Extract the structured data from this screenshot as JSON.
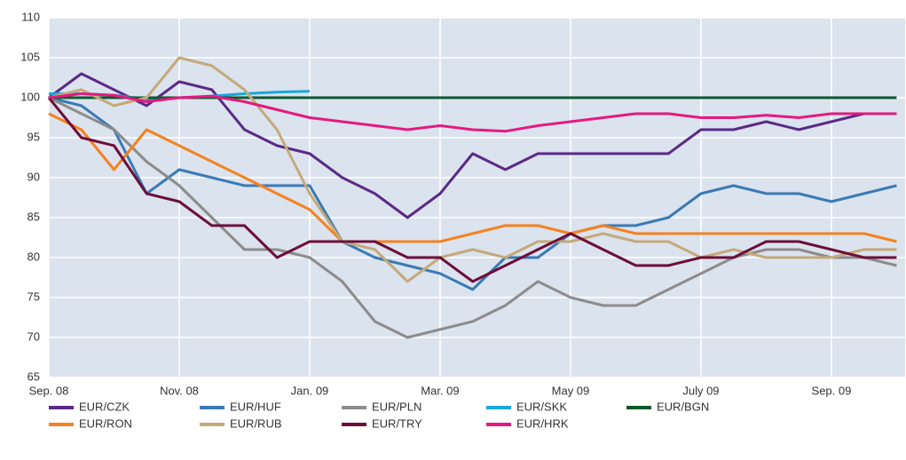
{
  "chart_data": {
    "type": "line",
    "x": [
      0,
      0.5,
      1,
      1.5,
      2,
      2.5,
      3,
      3.5,
      4,
      4.5,
      5,
      5.5,
      6,
      6.5,
      7,
      7.5,
      8,
      8.5,
      9,
      9.5,
      10,
      10.5,
      11,
      11.5,
      12,
      12.5,
      13
    ],
    "xlim": [
      0,
      13.13
    ],
    "xticks": [
      {
        "value": 0,
        "label": "Sep. 08"
      },
      {
        "value": 2,
        "label": "Nov. 08"
      },
      {
        "value": 4,
        "label": "Jan. 09"
      },
      {
        "value": 6,
        "label": "Mar. 09"
      },
      {
        "value": 8,
        "label": "May 09"
      },
      {
        "value": 10,
        "label": "July 09"
      },
      {
        "value": 12,
        "label": "Sep. 09"
      }
    ],
    "ylim": [
      65,
      110
    ],
    "yticks": [
      65,
      70,
      75,
      80,
      85,
      90,
      95,
      100,
      105,
      110
    ],
    "grid": true,
    "series": [
      {
        "name": "EUR/CZK",
        "color": "#5b2a86",
        "values": [
          100,
          103,
          101,
          99,
          102,
          101,
          96,
          94,
          93,
          90,
          88,
          85,
          88,
          93,
          91,
          93,
          93,
          93,
          93,
          93,
          96,
          96,
          97,
          96,
          97,
          98,
          98
        ]
      },
      {
        "name": "EUR/HUF",
        "color": "#3a7ab5",
        "values": [
          100,
          99,
          96,
          88,
          91,
          90,
          89,
          89,
          89,
          82,
          80,
          79,
          78,
          76,
          80,
          80,
          83,
          84,
          84,
          85,
          88,
          89,
          88,
          88,
          87,
          88,
          89
        ]
      },
      {
        "name": "EUR/PLN",
        "color": "#8c8c8c",
        "values": [
          100,
          98,
          96,
          92,
          89,
          85,
          81,
          81,
          80,
          77,
          72,
          70,
          71,
          72,
          74,
          77,
          75,
          74,
          74,
          76,
          78,
          80,
          81,
          81,
          80,
          80,
          79
        ]
      },
      {
        "name": "EUR/SKK",
        "color": "#1aa7e0",
        "values": [
          100.5,
          100.5,
          100.3,
          99.8,
          100,
          100.2,
          100.5,
          100.7,
          100.8,
          null,
          null,
          null,
          null,
          null,
          null,
          null,
          null,
          null,
          null,
          null,
          null,
          null,
          null,
          null,
          null,
          null,
          null
        ]
      },
      {
        "name": "EUR/BGN",
        "color": "#0b5a2e",
        "values": [
          100,
          100,
          100,
          100,
          100,
          100,
          100,
          100,
          100,
          100,
          100,
          100,
          100,
          100,
          100,
          100,
          100,
          100,
          100,
          100,
          100,
          100,
          100,
          100,
          100,
          100,
          100
        ]
      },
      {
        "name": "EUR/RON",
        "color": "#f58220",
        "values": [
          98,
          96,
          91,
          96,
          94,
          92,
          90,
          88,
          86,
          82,
          82,
          82,
          82,
          83,
          84,
          84,
          83,
          84,
          83,
          83,
          83,
          83,
          83,
          83,
          83,
          83,
          82
        ]
      },
      {
        "name": "EUR/RUB",
        "color": "#c4aa7a",
        "values": [
          100,
          101,
          99,
          100,
          105,
          104,
          101,
          96,
          88,
          82,
          81,
          77,
          80,
          81,
          80,
          82,
          82,
          83,
          82,
          82,
          80,
          81,
          80,
          80,
          80,
          81,
          81
        ]
      },
      {
        "name": "EUR/TRY",
        "color": "#6d0e3a",
        "values": [
          100,
          95,
          94,
          88,
          87,
          84,
          84,
          80,
          82,
          82,
          82,
          80,
          80,
          77,
          79,
          81,
          83,
          81,
          79,
          79,
          80,
          80,
          82,
          82,
          81,
          80,
          80
        ]
      },
      {
        "name": "EUR/HRK",
        "color": "#e6197f",
        "values": [
          100,
          100.5,
          100.3,
          99.5,
          100,
          100.2,
          99.5,
          98.5,
          97.5,
          97,
          96.5,
          96,
          96.5,
          96,
          95.8,
          96.5,
          97,
          97.5,
          98,
          98,
          97.5,
          97.5,
          97.8,
          97.5,
          98,
          98,
          98
        ]
      }
    ]
  }
}
